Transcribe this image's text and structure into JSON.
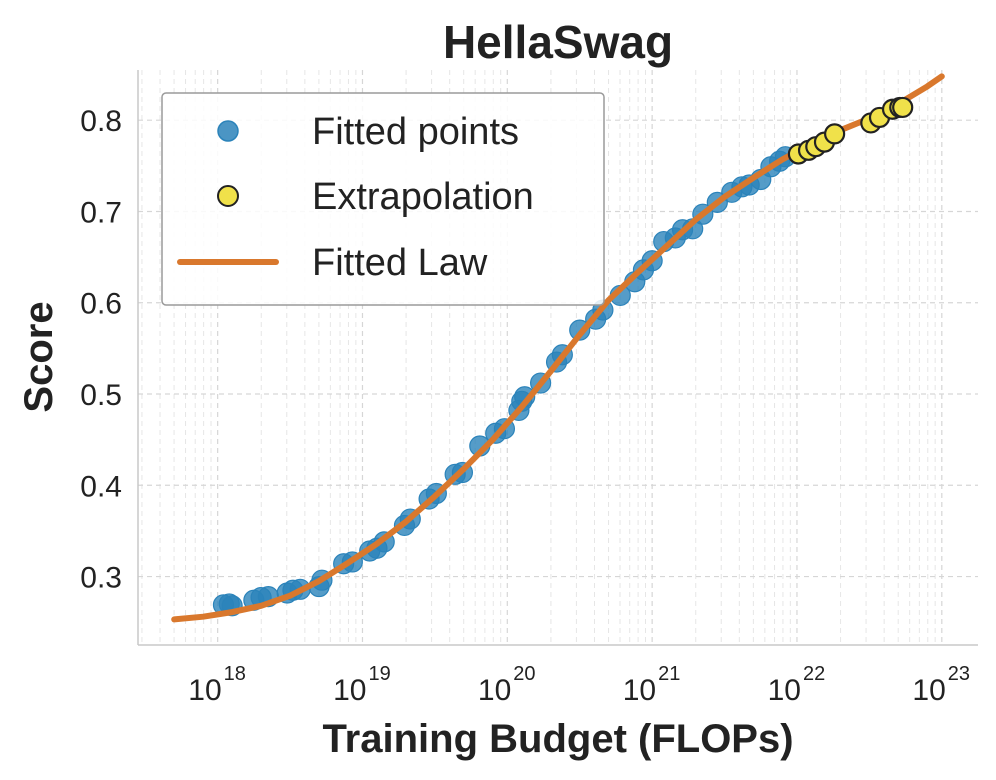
{
  "chart_data": {
    "type": "scatter",
    "title": "HellaSwag",
    "xlabel": "Training Budget (FLOPs)",
    "ylabel": "Score",
    "xscale": "log",
    "xlim_log10": [
      17.45,
      23.25
    ],
    "ylim": [
      0.225,
      0.855
    ],
    "grid": true,
    "legend_position": "upper-left",
    "x_ticks": [
      {
        "base": "10",
        "exp": "18",
        "log10": 18
      },
      {
        "base": "10",
        "exp": "19",
        "log10": 19
      },
      {
        "base": "10",
        "exp": "20",
        "log10": 20
      },
      {
        "base": "10",
        "exp": "21",
        "log10": 21
      },
      {
        "base": "10",
        "exp": "22",
        "log10": 22
      },
      {
        "base": "10",
        "exp": "23",
        "log10": 23
      }
    ],
    "y_ticks": [
      {
        "label": "0.3",
        "value": 0.3
      },
      {
        "label": "0.4",
        "value": 0.4
      },
      {
        "label": "0.5",
        "value": 0.5
      },
      {
        "label": "0.6",
        "value": 0.6
      },
      {
        "label": "0.7",
        "value": 0.7
      },
      {
        "label": "0.8",
        "value": 0.8
      }
    ],
    "series": [
      {
        "name": "Fitted points",
        "kind": "scatter",
        "color": "#2b83ba",
        "points_log10x_y": [
          [
            18.04,
            0.269
          ],
          [
            18.08,
            0.27
          ],
          [
            18.1,
            0.268
          ],
          [
            18.25,
            0.274
          ],
          [
            18.3,
            0.277
          ],
          [
            18.35,
            0.278
          ],
          [
            18.48,
            0.282
          ],
          [
            18.52,
            0.285
          ],
          [
            18.57,
            0.286
          ],
          [
            18.7,
            0.289
          ],
          [
            18.72,
            0.296
          ],
          [
            18.87,
            0.314
          ],
          [
            18.93,
            0.316
          ],
          [
            19.05,
            0.328
          ],
          [
            19.1,
            0.331
          ],
          [
            19.15,
            0.338
          ],
          [
            19.29,
            0.356
          ],
          [
            19.33,
            0.363
          ],
          [
            19.46,
            0.385
          ],
          [
            19.51,
            0.391
          ],
          [
            19.64,
            0.412
          ],
          [
            19.69,
            0.414
          ],
          [
            19.81,
            0.443
          ],
          [
            19.92,
            0.457
          ],
          [
            19.98,
            0.462
          ],
          [
            20.08,
            0.482
          ],
          [
            20.1,
            0.492
          ],
          [
            20.12,
            0.497
          ],
          [
            20.23,
            0.512
          ],
          [
            20.34,
            0.535
          ],
          [
            20.38,
            0.543
          ],
          [
            20.5,
            0.57
          ],
          [
            20.61,
            0.582
          ],
          [
            20.66,
            0.592
          ],
          [
            20.78,
            0.608
          ],
          [
            20.88,
            0.623
          ],
          [
            20.94,
            0.636
          ],
          [
            21.0,
            0.646
          ],
          [
            21.08,
            0.667
          ],
          [
            21.16,
            0.671
          ],
          [
            21.21,
            0.68
          ],
          [
            21.28,
            0.681
          ],
          [
            21.35,
            0.697
          ],
          [
            21.45,
            0.71
          ],
          [
            21.55,
            0.721
          ],
          [
            21.62,
            0.727
          ],
          [
            21.67,
            0.729
          ],
          [
            21.75,
            0.735
          ],
          [
            21.82,
            0.749
          ],
          [
            21.88,
            0.755
          ],
          [
            21.92,
            0.76
          ]
        ]
      },
      {
        "name": "Extrapolation",
        "kind": "scatter",
        "color": "#f0e14a",
        "edgecolor": "#222222",
        "points_log10x_y": [
          [
            22.01,
            0.763
          ],
          [
            22.08,
            0.767
          ],
          [
            22.13,
            0.771
          ],
          [
            22.19,
            0.776
          ],
          [
            22.26,
            0.785
          ],
          [
            22.51,
            0.797
          ],
          [
            22.57,
            0.803
          ],
          [
            22.66,
            0.812
          ],
          [
            22.71,
            0.814
          ],
          [
            22.73,
            0.814
          ]
        ]
      },
      {
        "name": "Fitted Law",
        "kind": "line",
        "color": "#d9782d",
        "points_log10x_y": [
          [
            17.7,
            0.253
          ],
          [
            17.9,
            0.256
          ],
          [
            18.1,
            0.261
          ],
          [
            18.3,
            0.268
          ],
          [
            18.5,
            0.279
          ],
          [
            18.7,
            0.295
          ],
          [
            18.9,
            0.315
          ],
          [
            19.1,
            0.336
          ],
          [
            19.3,
            0.36
          ],
          [
            19.5,
            0.388
          ],
          [
            19.7,
            0.418
          ],
          [
            19.9,
            0.45
          ],
          [
            20.1,
            0.486
          ],
          [
            20.3,
            0.525
          ],
          [
            20.5,
            0.565
          ],
          [
            20.7,
            0.603
          ],
          [
            20.9,
            0.633
          ],
          [
            21.1,
            0.662
          ],
          [
            21.3,
            0.691
          ],
          [
            21.5,
            0.716
          ],
          [
            21.7,
            0.737
          ],
          [
            21.9,
            0.757
          ],
          [
            22.1,
            0.774
          ],
          [
            22.3,
            0.789
          ],
          [
            22.5,
            0.802
          ],
          [
            22.7,
            0.818
          ],
          [
            22.9,
            0.837
          ],
          [
            23.0,
            0.848
          ]
        ]
      }
    ]
  }
}
